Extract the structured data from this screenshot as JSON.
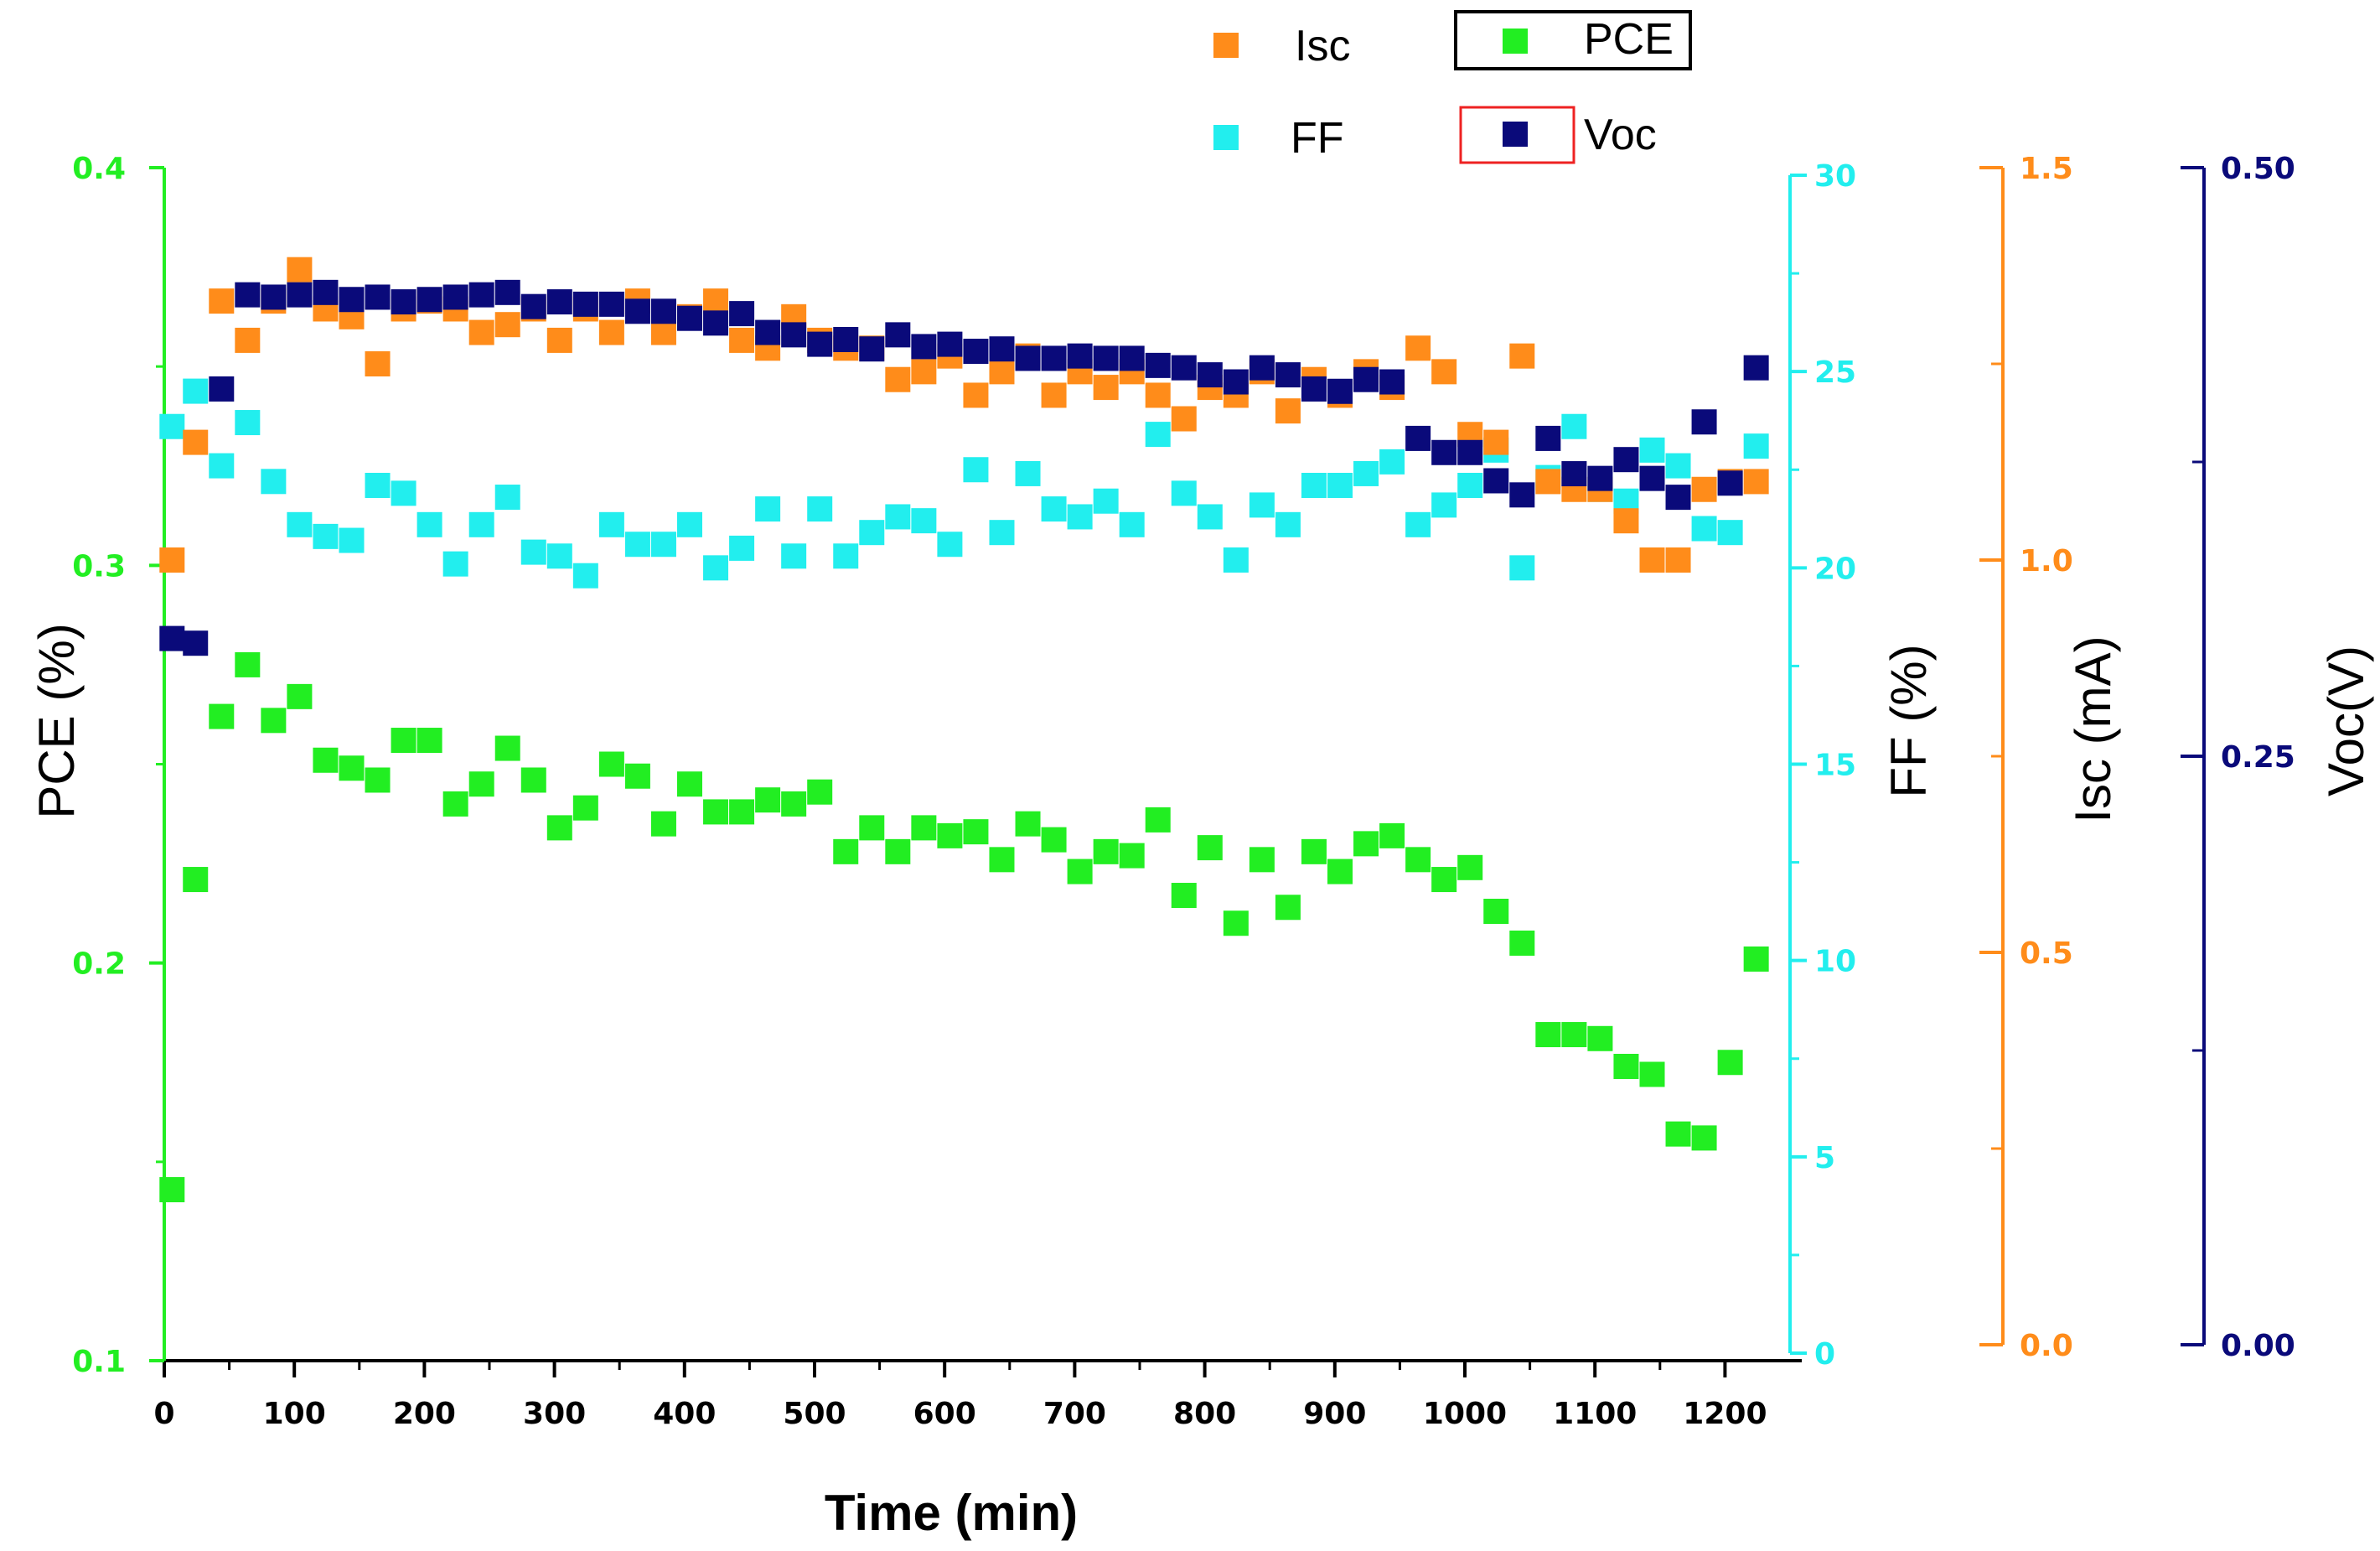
{
  "colors": {
    "pce": "#22ee22",
    "ff": "#22eeee",
    "isc": "#ff8c1a",
    "voc": "#0a0a7a",
    "axis": "#000000",
    "legend_box_pce": "#000000",
    "legend_box_voc": "#ee2222"
  },
  "chart_data": {
    "type": "scatter",
    "xlabel": "Time (min)",
    "xlim": [
      0,
      1250
    ],
    "xticks": [
      "0",
      "100",
      "200",
      "300",
      "400",
      "500",
      "600",
      "700",
      "800",
      "900",
      "1000",
      "1100",
      "1200"
    ],
    "axes": {
      "pce": {
        "label": "PCE (%)",
        "lim": [
          0.1,
          0.4
        ],
        "ticks": [
          "0.1",
          "0.2",
          "0.3",
          "0.4"
        ]
      },
      "ff": {
        "label": "FF (%)",
        "lim": [
          0,
          30
        ],
        "ticks": [
          "0",
          "5",
          "10",
          "15",
          "20",
          "25",
          "30"
        ]
      },
      "isc": {
        "label": "Isc (mA)",
        "lim": [
          0,
          1.5
        ],
        "ticks": [
          "0.0",
          "0.5",
          "1.0",
          "1.5"
        ]
      },
      "voc": {
        "label": "Voc(V)",
        "lim": [
          0,
          0.5
        ],
        "ticks": [
          "0.00",
          "0.25",
          "0.50"
        ]
      }
    },
    "legend": [
      "Isc",
      "PCE",
      "FF",
      "Voc"
    ],
    "series": [
      {
        "name": "PCE",
        "x": [
          6,
          24,
          44,
          64,
          84,
          104,
          124,
          144,
          164,
          184,
          204,
          224,
          244,
          264,
          284,
          304,
          324,
          344,
          364,
          384,
          404,
          424,
          444,
          464,
          484,
          504,
          524,
          544,
          564,
          584,
          604,
          624,
          644,
          664,
          684,
          704,
          724,
          744,
          764,
          784,
          804,
          824,
          844,
          864,
          884,
          904,
          924,
          944,
          964,
          984,
          1004,
          1024,
          1044,
          1064,
          1084,
          1104,
          1124,
          1144,
          1164,
          1184,
          1204,
          1224
        ],
        "y": [
          0.143,
          0.221,
          0.262,
          0.275,
          0.261,
          0.267,
          0.251,
          0.249,
          0.246,
          0.256,
          0.256,
          0.24,
          0.245,
          0.254,
          0.246,
          0.234,
          0.239,
          0.25,
          0.247,
          0.235,
          0.245,
          0.238,
          0.238,
          0.241,
          0.24,
          0.243,
          0.228,
          0.234,
          0.228,
          0.234,
          0.232,
          0.233,
          0.226,
          0.235,
          0.231,
          0.223,
          0.228,
          0.227,
          0.236,
          0.217,
          0.229,
          0.21,
          0.226,
          0.214,
          0.228,
          0.223,
          0.23,
          0.232,
          0.226,
          0.221,
          0.224,
          0.213,
          0.205,
          0.182,
          0.182,
          0.181,
          0.174,
          0.172,
          0.157,
          0.156,
          0.175,
          0.201
        ]
      },
      {
        "name": "FF",
        "x": [
          6,
          24,
          44,
          64,
          84,
          104,
          124,
          144,
          164,
          184,
          204,
          224,
          244,
          264,
          284,
          304,
          324,
          344,
          364,
          384,
          404,
          424,
          444,
          464,
          484,
          504,
          524,
          544,
          564,
          584,
          604,
          624,
          644,
          664,
          684,
          704,
          724,
          744,
          764,
          784,
          804,
          824,
          844,
          864,
          884,
          904,
          924,
          944,
          964,
          984,
          1004,
          1024,
          1044,
          1064,
          1084,
          1104,
          1124,
          1144,
          1164,
          1184,
          1204,
          1224
        ],
        "y": [
          23.6,
          24.5,
          22.6,
          23.7,
          22.2,
          21.1,
          20.8,
          20.7,
          22.1,
          21.9,
          21.1,
          20.1,
          21.1,
          21.8,
          20.4,
          20.3,
          19.8,
          21.1,
          20.6,
          20.6,
          21.1,
          20.0,
          20.5,
          21.5,
          20.3,
          21.5,
          20.3,
          20.9,
          21.3,
          21.2,
          20.6,
          22.5,
          20.9,
          22.4,
          21.5,
          21.3,
          21.7,
          21.1,
          23.4,
          21.9,
          21.3,
          20.2,
          21.6,
          21.1,
          22.1,
          22.1,
          22.4,
          22.7,
          21.1,
          21.6,
          22.1,
          23.0,
          20.0,
          22.3,
          23.6,
          22.0,
          21.7,
          23.0,
          22.6,
          21.0,
          20.9,
          23.1
        ]
      },
      {
        "name": "Isc",
        "x": [
          6,
          24,
          44,
          64,
          84,
          104,
          124,
          144,
          164,
          184,
          204,
          224,
          244,
          264,
          284,
          304,
          324,
          344,
          364,
          384,
          404,
          424,
          444,
          464,
          484,
          504,
          524,
          544,
          564,
          584,
          604,
          624,
          644,
          664,
          684,
          704,
          724,
          744,
          764,
          784,
          804,
          824,
          844,
          864,
          884,
          904,
          924,
          944,
          964,
          984,
          1004,
          1024,
          1044,
          1064,
          1084,
          1104,
          1124,
          1144,
          1164,
          1184,
          1204,
          1224
        ],
        "y": [
          1.0,
          1.15,
          1.33,
          1.28,
          1.33,
          1.37,
          1.32,
          1.31,
          1.25,
          1.32,
          1.33,
          1.32,
          1.29,
          1.3,
          1.32,
          1.28,
          1.32,
          1.29,
          1.33,
          1.29,
          1.31,
          1.33,
          1.28,
          1.27,
          1.31,
          1.28,
          1.27,
          1.27,
          1.23,
          1.24,
          1.26,
          1.21,
          1.24,
          1.26,
          1.21,
          1.24,
          1.22,
          1.24,
          1.21,
          1.18,
          1.22,
          1.21,
          1.24,
          1.19,
          1.23,
          1.21,
          1.24,
          1.22,
          1.27,
          1.24,
          1.16,
          1.15,
          1.26,
          1.1,
          1.09,
          1.09,
          1.05,
          1.0,
          1.0,
          1.09,
          1.1,
          1.1
        ]
      },
      {
        "name": "Voc",
        "x": [
          6,
          24,
          44,
          64,
          84,
          104,
          124,
          144,
          164,
          184,
          204,
          224,
          244,
          264,
          284,
          304,
          324,
          344,
          364,
          384,
          404,
          424,
          444,
          464,
          484,
          504,
          524,
          544,
          564,
          584,
          604,
          624,
          644,
          664,
          684,
          704,
          724,
          744,
          764,
          784,
          804,
          824,
          844,
          864,
          884,
          904,
          924,
          944,
          964,
          984,
          1004,
          1024,
          1044,
          1064,
          1084,
          1104,
          1124,
          1144,
          1164,
          1184,
          1204,
          1224
        ],
        "y": [
          0.3,
          0.298,
          0.406,
          0.446,
          0.445,
          0.446,
          0.447,
          0.444,
          0.445,
          0.443,
          0.444,
          0.445,
          0.446,
          0.447,
          0.441,
          0.443,
          0.442,
          0.442,
          0.439,
          0.439,
          0.436,
          0.434,
          0.438,
          0.43,
          0.429,
          0.425,
          0.427,
          0.423,
          0.429,
          0.424,
          0.425,
          0.422,
          0.423,
          0.419,
          0.419,
          0.42,
          0.419,
          0.419,
          0.416,
          0.415,
          0.412,
          0.409,
          0.415,
          0.412,
          0.406,
          0.405,
          0.41,
          0.409,
          0.385,
          0.379,
          0.379,
          0.367,
          0.361,
          0.385,
          0.37,
          0.368,
          0.376,
          0.368,
          0.36,
          0.392,
          0.366,
          0.415
        ]
      }
    ]
  }
}
